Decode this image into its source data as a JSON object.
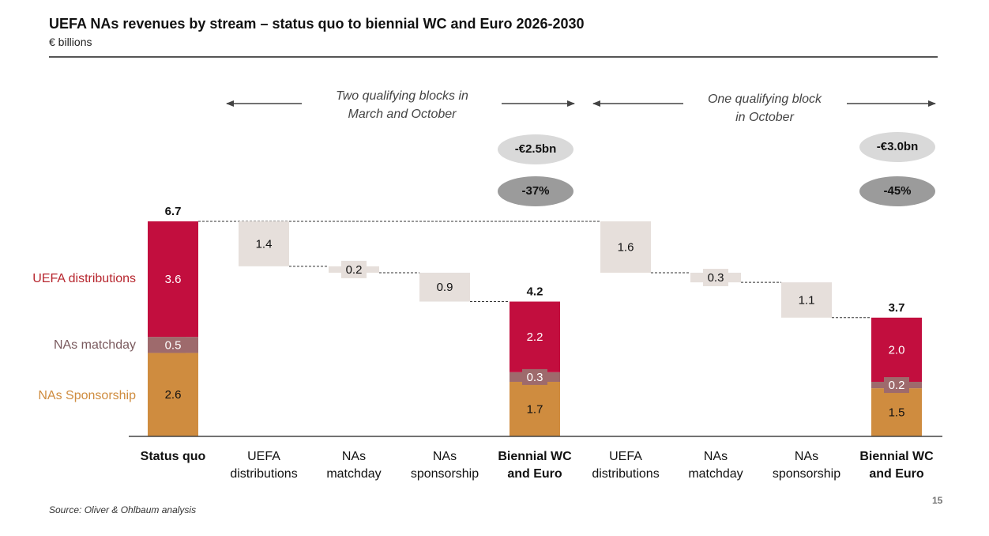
{
  "header": {
    "title": "UEFA NAs revenues by stream – status quo to biennial WC and Euro 2026-2030",
    "subtitle": "€ billions"
  },
  "footer": {
    "source": "Source: Oliver & Ohlbaum analysis",
    "page_number": "15"
  },
  "colors": {
    "uefa_distributions": "#c20e3e",
    "nas_matchday": "#9e6a6c",
    "nas_sponsorship": "#cf8c3f",
    "decrease": "#e6dfdb",
    "pill_light": "#d9d9d9",
    "pill_dark": "#9b9b9b",
    "connector": "#333333"
  },
  "legend": [
    {
      "label": "UEFA distributions",
      "color": "#b7262e"
    },
    {
      "label": "NAs matchday",
      "color": "#7a5a5e"
    },
    {
      "label": "NAs Sponsorship",
      "color": "#cf8c3f"
    }
  ],
  "annotations": {
    "block1": {
      "line1": "Two qualifying blocks in",
      "line2": "March and October"
    },
    "block2": {
      "line1": "One qualifying block",
      "line2": "in October"
    },
    "pills": [
      {
        "abs": "-€2.5bn",
        "pct": "-37%"
      },
      {
        "abs": "-€3.0bn",
        "pct": "-45%"
      }
    ]
  },
  "chart_data": {
    "type": "bar",
    "subtype": "waterfall-stacked",
    "title": "UEFA NAs revenues by stream – status quo to biennial WC and Euro 2026-2030",
    "ylabel": "€ billions",
    "ylim": [
      0,
      6.7
    ],
    "grid": false,
    "legend_position": "left",
    "categories": [
      {
        "line1": "Status quo",
        "line2": "",
        "bold": true
      },
      {
        "line1": "UEFA",
        "line2": "distributions",
        "bold": false
      },
      {
        "line1": "NAs",
        "line2": "matchday",
        "bold": false
      },
      {
        "line1": "NAs",
        "line2": "sponsorship",
        "bold": false
      },
      {
        "line1": "Biennial WC",
        "line2": "and Euro",
        "bold": true
      },
      {
        "line1": "UEFA",
        "line2": "distributions",
        "bold": false
      },
      {
        "line1": "NAs",
        "line2": "matchday",
        "bold": false
      },
      {
        "line1": "NAs",
        "line2": "sponsorship",
        "bold": false
      },
      {
        "line1": "Biennial WC",
        "line2": "and Euro",
        "bold": true
      }
    ],
    "bars": [
      {
        "kind": "total",
        "total": 6.7,
        "total_label": "6.7",
        "segments": [
          {
            "series": "NAs Sponsorship",
            "value": 2.6,
            "label": "2.6"
          },
          {
            "series": "NAs matchday",
            "value": 0.5,
            "label": "0.5"
          },
          {
            "series": "UEFA distributions",
            "value": 3.6,
            "label": "3.6"
          }
        ]
      },
      {
        "kind": "decrease",
        "from": 6.7,
        "value": 1.4,
        "label": "1.4"
      },
      {
        "kind": "decrease",
        "from": 5.3,
        "value": 0.2,
        "label": "0.2"
      },
      {
        "kind": "decrease",
        "from": 5.1,
        "value": 0.9,
        "label": "0.9"
      },
      {
        "kind": "total",
        "total": 4.2,
        "total_label": "4.2",
        "segments": [
          {
            "series": "NAs Sponsorship",
            "value": 1.7,
            "label": "1.7"
          },
          {
            "series": "NAs matchday",
            "value": 0.3,
            "label": "0.3"
          },
          {
            "series": "UEFA distributions",
            "value": 2.2,
            "label": "2.2"
          }
        ]
      },
      {
        "kind": "decrease",
        "from": 6.7,
        "value": 1.6,
        "label": "1.6"
      },
      {
        "kind": "decrease",
        "from": 5.1,
        "value": 0.3,
        "label": "0.3"
      },
      {
        "kind": "decrease",
        "from": 4.8,
        "value": 1.1,
        "label": "1.1"
      },
      {
        "kind": "total",
        "total": 3.7,
        "total_label": "3.7",
        "segments": [
          {
            "series": "NAs Sponsorship",
            "value": 1.5,
            "label": "1.5"
          },
          {
            "series": "NAs matchday",
            "value": 0.2,
            "label": "0.2"
          },
          {
            "series": "UEFA distributions",
            "value": 2.0,
            "label": "2.0"
          }
        ]
      }
    ],
    "series": [
      {
        "name": "UEFA distributions",
        "values": [
          3.6,
          null,
          null,
          null,
          2.2,
          null,
          null,
          null,
          2.0
        ]
      },
      {
        "name": "NAs matchday",
        "values": [
          0.5,
          null,
          null,
          null,
          0.3,
          null,
          null,
          null,
          0.2
        ]
      },
      {
        "name": "NAs Sponsorship",
        "values": [
          2.6,
          null,
          null,
          null,
          1.7,
          null,
          null,
          null,
          1.5
        ]
      },
      {
        "name": "Decrease",
        "values": [
          null,
          1.4,
          0.2,
          0.9,
          null,
          1.6,
          0.3,
          1.1,
          null
        ]
      }
    ]
  }
}
